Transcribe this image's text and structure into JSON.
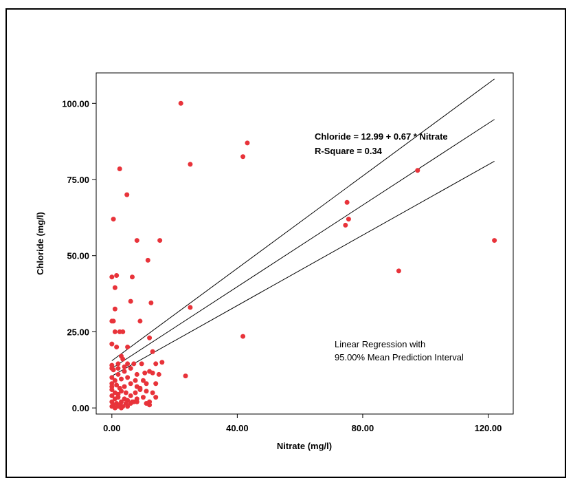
{
  "chart_data": {
    "type": "scatter",
    "title": "",
    "xlabel": "Nitrate (mg/l)",
    "ylabel": "Chloride (mg/l)",
    "xlim": [
      -5,
      128
    ],
    "ylim": [
      -2,
      110
    ],
    "x_ticks": [
      0,
      40,
      80,
      120
    ],
    "x_tick_labels": [
      "0.00",
      "40.00",
      "80.00",
      "120.00"
    ],
    "y_ticks": [
      0,
      25,
      50,
      75,
      100
    ],
    "y_tick_labels": [
      "0.00",
      "25.00",
      "50.00",
      "75.00",
      "100.00"
    ],
    "grid": false,
    "point_color": "#e8333a",
    "equation": "Chloride = 12.99 + 0.67 * Nitrate",
    "r_square": "R-Square = 0.34",
    "annotation_line1": "Linear Regression with",
    "annotation_line2": "95.00% Mean Prediction Interval",
    "regression": {
      "intercept": 12.99,
      "slope": 0.67,
      "x_range": [
        0,
        122
      ]
    },
    "upper_interval": [
      [
        0,
        15.5
      ],
      [
        122,
        108
      ]
    ],
    "lower_interval": [
      [
        0,
        10.5
      ],
      [
        122,
        81
      ]
    ],
    "points": [
      [
        22,
        100
      ],
      [
        43.2,
        87
      ],
      [
        41.8,
        82.5
      ],
      [
        25,
        80
      ],
      [
        2.5,
        78.5
      ],
      [
        97.5,
        78
      ],
      [
        4.8,
        70
      ],
      [
        0.5,
        62
      ],
      [
        75,
        67.5
      ],
      [
        75.5,
        62
      ],
      [
        74.5,
        60
      ],
      [
        8,
        55
      ],
      [
        15.3,
        55
      ],
      [
        122,
        55
      ],
      [
        11.5,
        48.5
      ],
      [
        91.5,
        45
      ],
      [
        0,
        43
      ],
      [
        1.5,
        43.5
      ],
      [
        6.5,
        43
      ],
      [
        1,
        39.5
      ],
      [
        6,
        35
      ],
      [
        12.5,
        34.5
      ],
      [
        25,
        33
      ],
      [
        1,
        32.5
      ],
      [
        0,
        28.5
      ],
      [
        0.5,
        28.5
      ],
      [
        9,
        28.5
      ],
      [
        2.5,
        25
      ],
      [
        3.5,
        25
      ],
      [
        1,
        25
      ],
      [
        0,
        21
      ],
      [
        1.5,
        20
      ],
      [
        5,
        20
      ],
      [
        41.8,
        23.5
      ],
      [
        12,
        23
      ],
      [
        3,
        17
      ],
      [
        3.5,
        16
      ],
      [
        13,
        18.5
      ],
      [
        0,
        14
      ],
      [
        0,
        13
      ],
      [
        2,
        14.5
      ],
      [
        5,
        14.5
      ],
      [
        7,
        14.5
      ],
      [
        9.5,
        14.5
      ],
      [
        14,
        14.5
      ],
      [
        16,
        15
      ],
      [
        0.5,
        12.5
      ],
      [
        2,
        11
      ],
      [
        4,
        12
      ],
      [
        6,
        13
      ],
      [
        8,
        11
      ],
      [
        12,
        12
      ],
      [
        13,
        11.5
      ],
      [
        15,
        11
      ],
      [
        23.5,
        10.5
      ],
      [
        0,
        10
      ],
      [
        1,
        9
      ],
      [
        3,
        9.5
      ],
      [
        5,
        10
      ],
      [
        7.5,
        9
      ],
      [
        10,
        9
      ],
      [
        0,
        8
      ],
      [
        1.5,
        7.5
      ],
      [
        2.5,
        6.5
      ],
      [
        4,
        7
      ],
      [
        6,
        8
      ],
      [
        8,
        7
      ],
      [
        11,
        8
      ],
      [
        14,
        8
      ],
      [
        0,
        6
      ],
      [
        1,
        5
      ],
      [
        2,
        4.5
      ],
      [
        3,
        5.5
      ],
      [
        4.5,
        5
      ],
      [
        6,
        4
      ],
      [
        7.5,
        5
      ],
      [
        9,
        6
      ],
      [
        11,
        5.5
      ],
      [
        13,
        5
      ],
      [
        0,
        4
      ],
      [
        1,
        3
      ],
      [
        2,
        3.5
      ],
      [
        3,
        2
      ],
      [
        4,
        3
      ],
      [
        5,
        2.5
      ],
      [
        6.5,
        2
      ],
      [
        8,
        3
      ],
      [
        10,
        3.5
      ],
      [
        12,
        2
      ],
      [
        14,
        3.5
      ],
      [
        0,
        2
      ],
      [
        0.5,
        1
      ],
      [
        1.5,
        1.5
      ],
      [
        2.5,
        1
      ],
      [
        3.5,
        0.5
      ],
      [
        4.5,
        1.5
      ],
      [
        6,
        1.5
      ],
      [
        8,
        2
      ],
      [
        11,
        1.5
      ],
      [
        12,
        1
      ],
      [
        0,
        0.5
      ],
      [
        1,
        0
      ],
      [
        2,
        0.5
      ],
      [
        3,
        0
      ],
      [
        5,
        0.5
      ],
      [
        7,
        2
      ],
      [
        9,
        6.5
      ],
      [
        10.5,
        11.5
      ],
      [
        4,
        13.5
      ],
      [
        2,
        13
      ],
      [
        0,
        7
      ]
    ]
  }
}
